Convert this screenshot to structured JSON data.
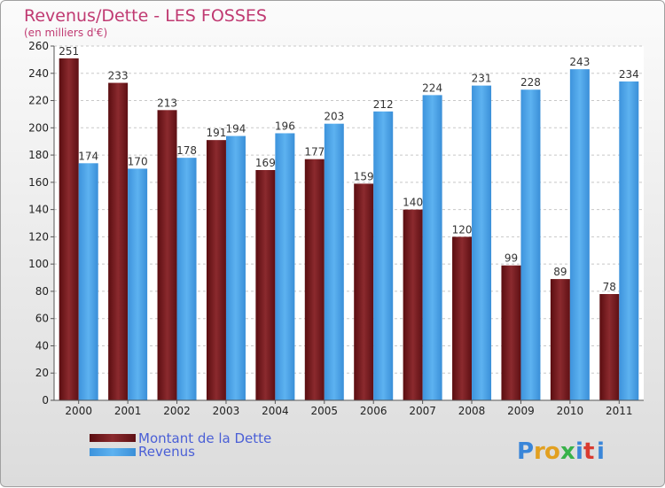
{
  "chart_data": {
    "type": "bar",
    "title": "Revenus/Dette - LES FOSSES",
    "subtitle": "(en milliers d'€)",
    "categories": [
      "2000",
      "2001",
      "2002",
      "2003",
      "2004",
      "2005",
      "2006",
      "2007",
      "2008",
      "2009",
      "2010",
      "2011"
    ],
    "series": [
      {
        "name": "Montant de la Dette",
        "color": "#7a1a1f",
        "values": [
          251,
          233,
          213,
          191,
          169,
          177,
          159,
          140,
          120,
          99,
          89,
          78
        ]
      },
      {
        "name": "Revenus",
        "color": "#4aa3e8",
        "values": [
          174,
          170,
          178,
          194,
          196,
          203,
          212,
          224,
          231,
          228,
          243,
          234
        ]
      }
    ],
    "ylim": [
      0,
      260
    ],
    "ytick_step": 20,
    "grid": true,
    "legend_position": "bottom-left"
  },
  "branding": {
    "logo_text": "Proxiti"
  }
}
